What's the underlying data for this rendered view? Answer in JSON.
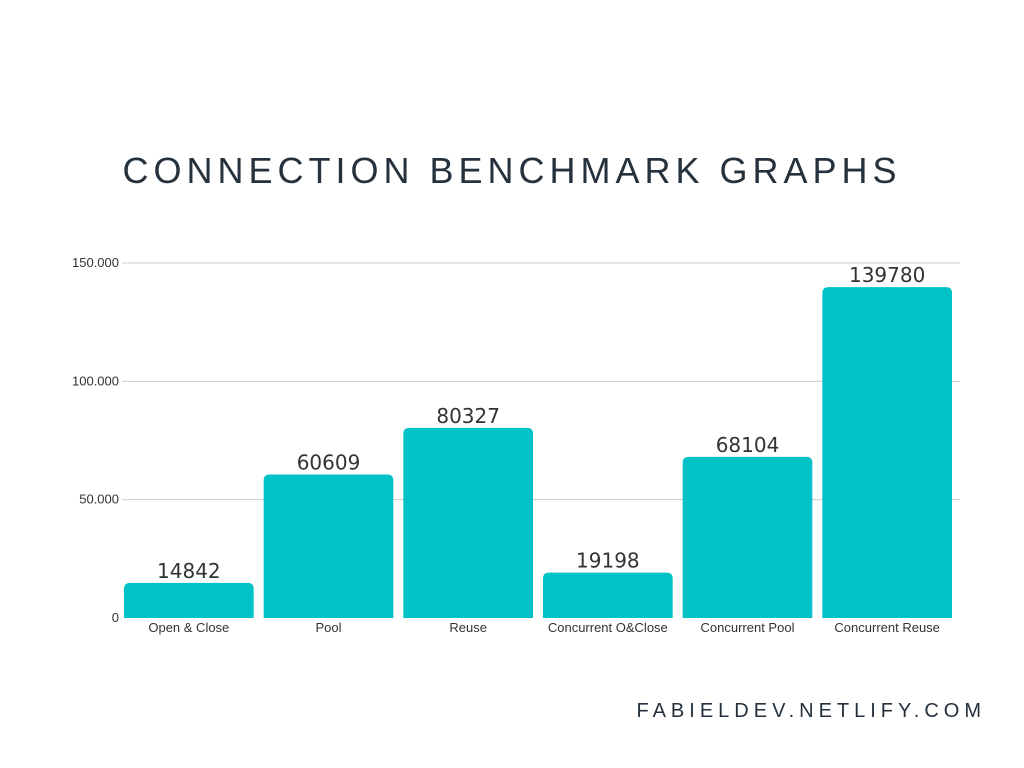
{
  "chart_data": {
    "type": "bar",
    "title": "CONNECTION BENCHMARK GRAPHS",
    "categories": [
      "Open & Close",
      "Pool",
      "Reuse",
      "Concurrent O&Close",
      "Concurrent Pool",
      "Concurrent Reuse"
    ],
    "values": [
      14842,
      60609,
      80327,
      19198,
      68104,
      139780
    ],
    "data_labels": [
      "14842",
      "60609",
      "80327",
      "19198",
      "68104",
      "139780"
    ],
    "y_ticks": [
      0,
      50000,
      100000,
      150000
    ],
    "y_tick_labels": [
      "0",
      "50.000",
      "100.000",
      "150.000"
    ],
    "ylim": [
      0,
      150000
    ],
    "xlabel": "",
    "ylabel": "",
    "grid": true,
    "bar_color": "#00c2c7"
  },
  "footer": {
    "text": "FABIELDEV.NETLIFY.COM"
  }
}
